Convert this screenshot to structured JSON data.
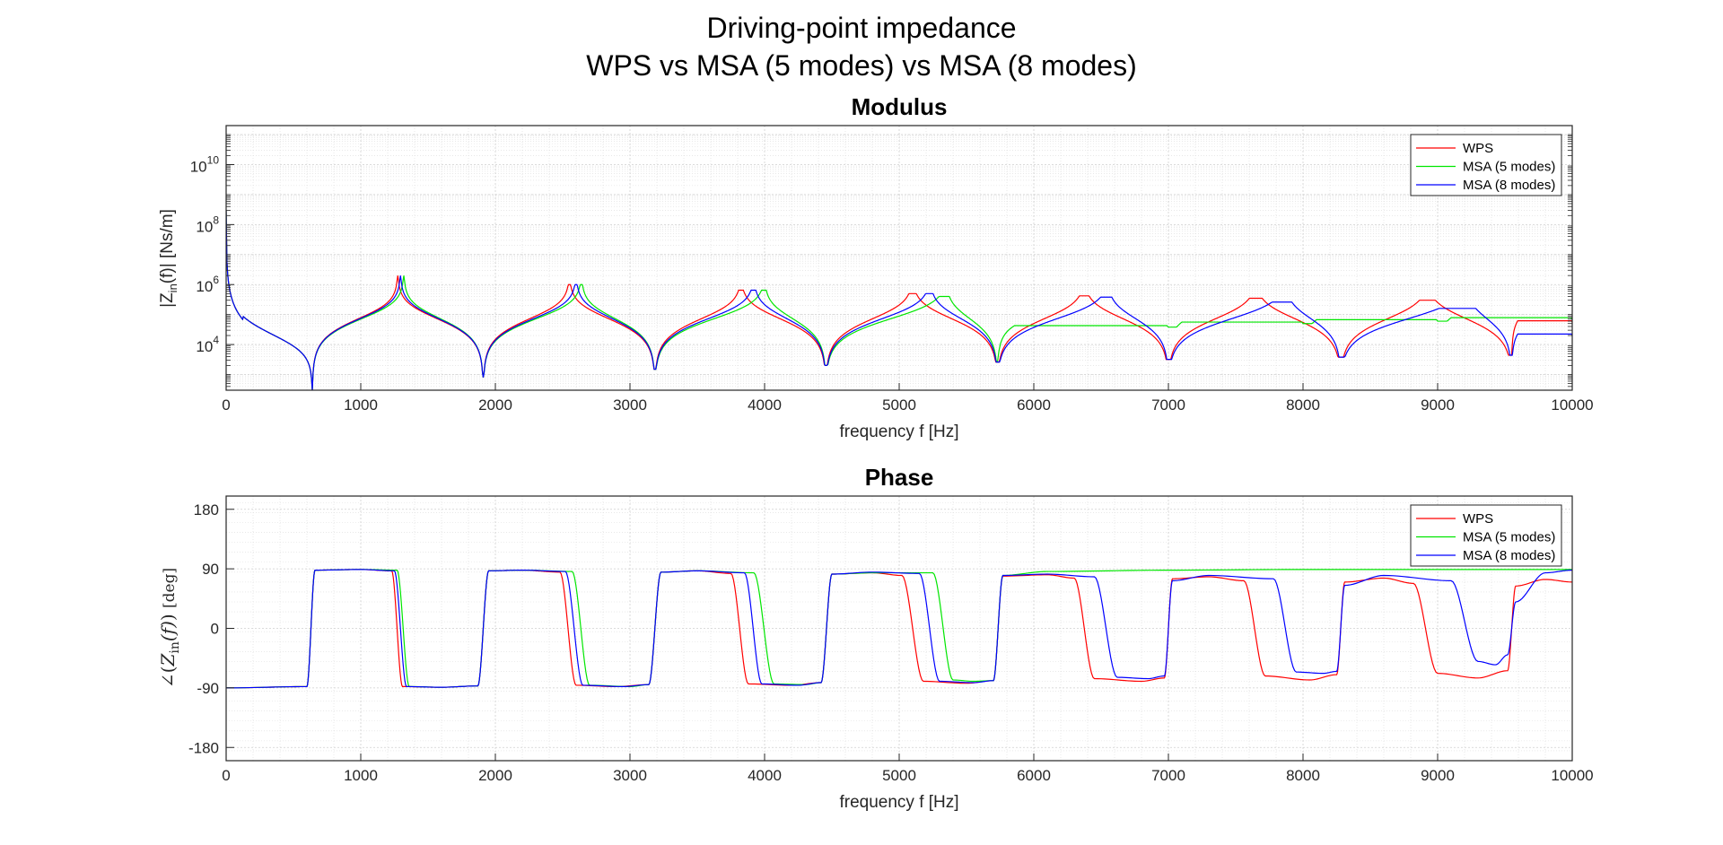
{
  "figure": {
    "title_line1": "Driving-point impedance",
    "title_line2": "WPS vs MSA (5 modes) vs MSA (8 modes)"
  },
  "colors": {
    "WPS": "#ff0000",
    "MSA (5 modes)": "#00e600",
    "MSA (8 modes)": "#0000ff"
  },
  "chart_data": [
    {
      "type": "line",
      "title": "Modulus",
      "xlabel": "frequency f [Hz]",
      "ylabel_main": "|Z",
      "ylabel_sub": "in",
      "ylabel_rest": "(f)| [Ns/m]",
      "yscale": "log",
      "xlim": [
        0,
        10000
      ],
      "ylim": [
        300,
        200000000000
      ],
      "xticks": [
        0,
        1000,
        2000,
        3000,
        4000,
        5000,
        6000,
        7000,
        8000,
        9000,
        10000
      ],
      "xticklabels": [
        "0",
        "1000",
        "2000",
        "3000",
        "4000",
        "5000",
        "6000",
        "7000",
        "8000",
        "9000",
        "10000"
      ],
      "yticks": [
        10000,
        1000000,
        100000000,
        10000000000
      ],
      "yticklabels_base": [
        "10",
        "10",
        "10",
        "10"
      ],
      "yticklabels_exp": [
        "4",
        "6",
        "8",
        "10"
      ],
      "grid": true,
      "minor_grid": true,
      "legend_position": "top-right",
      "series": [
        {
          "name": "WPS",
          "color": "#ff0000",
          "peaks": [
            [
              1275,
              2000000
            ],
            [
              2550,
              1000000
            ],
            [
              3825,
              650000
            ],
            [
              5100,
              500000
            ],
            [
              6375,
              420000
            ],
            [
              7650,
              350000
            ],
            [
              8925,
              300000
            ]
          ],
          "dips": [
            [
              0,
              300000000
            ],
            [
              640,
              300
            ],
            [
              1910,
              800
            ],
            [
              3185,
              1500
            ],
            [
              4455,
              2000
            ],
            [
              5730,
              2600
            ],
            [
              7000,
              3200
            ],
            [
              8280,
              3800
            ],
            [
              9550,
              4400
            ],
            [
              10000,
              55000
            ]
          ]
        },
        {
          "name": "MSA (5 modes)",
          "color": "#00e600",
          "peaks": [
            [
              1320,
              2000000
            ],
            [
              2640,
              1000000
            ],
            [
              4000,
              650000
            ],
            [
              5350,
              400000
            ]
          ],
          "dips": [
            [
              0,
              300000000
            ],
            [
              640,
              300
            ],
            [
              1910,
              800
            ],
            [
              3185,
              1500
            ],
            [
              4455,
              2000
            ],
            [
              5730,
              2600
            ],
            [
              7000,
              38000
            ],
            [
              8000,
              50000
            ],
            [
              9000,
              60000
            ],
            [
              10000,
              70000
            ]
          ]
        },
        {
          "name": "MSA (8 modes)",
          "color": "#0000ff",
          "peaks": [
            [
              1295,
              2000000
            ],
            [
              2600,
              1000000
            ],
            [
              3920,
              650000
            ],
            [
              5230,
              500000
            ],
            [
              6550,
              380000
            ],
            [
              7870,
              260000
            ],
            [
              9210,
              160000
            ]
          ],
          "dips": [
            [
              0,
              300000000
            ],
            [
              640,
              300
            ],
            [
              1910,
              800
            ],
            [
              3185,
              1500
            ],
            [
              4455,
              2000
            ],
            [
              5730,
              2600
            ],
            [
              7000,
              3200
            ],
            [
              8280,
              3800
            ],
            [
              9550,
              4400
            ],
            [
              10000,
              20000
            ]
          ]
        }
      ]
    },
    {
      "type": "line",
      "title": "Phase",
      "xlabel": "frequency f [Hz]",
      "ylabel": "∠(Z_in(f))  [deg]",
      "ylabel_angle": "∠",
      "ylabel_z": "Z",
      "ylabel_in": "in",
      "ylabel_f": "(f)",
      "ylabel_unit": "[deg]",
      "xlim": [
        0,
        10000
      ],
      "ylim": [
        -200,
        200
      ],
      "xticks": [
        0,
        1000,
        2000,
        3000,
        4000,
        5000,
        6000,
        7000,
        8000,
        9000,
        10000
      ],
      "xticklabels": [
        "0",
        "1000",
        "2000",
        "3000",
        "4000",
        "5000",
        "6000",
        "7000",
        "8000",
        "9000",
        "10000"
      ],
      "yticks": [
        -180,
        -90,
        0,
        90,
        180
      ],
      "yticklabels": [
        "-180",
        "-90",
        "0",
        "90",
        "180"
      ],
      "grid": true,
      "minor_grid": true,
      "legend_position": "top-right",
      "series": [
        {
          "name": "WPS",
          "color": "#ff0000",
          "points": [
            [
              0,
              -90
            ],
            [
              600,
              -88
            ],
            [
              660,
              88
            ],
            [
              1000,
              89
            ],
            [
              1230,
              87
            ],
            [
              1310,
              -88
            ],
            [
              1600,
              -89
            ],
            [
              1870,
              -87
            ],
            [
              1950,
              87
            ],
            [
              2200,
              88
            ],
            [
              2480,
              85
            ],
            [
              2600,
              -86
            ],
            [
              2900,
              -88
            ],
            [
              3140,
              -85
            ],
            [
              3230,
              85
            ],
            [
              3500,
              87
            ],
            [
              3750,
              83
            ],
            [
              3880,
              -84
            ],
            [
              4200,
              -86
            ],
            [
              4420,
              -82
            ],
            [
              4500,
              82
            ],
            [
              4800,
              84
            ],
            [
              5020,
              80
            ],
            [
              5180,
              -80
            ],
            [
              5500,
              -83
            ],
            [
              5700,
              -79
            ],
            [
              5770,
              79
            ],
            [
              6100,
              81
            ],
            [
              6300,
              76
            ],
            [
              6450,
              -76
            ],
            [
              6800,
              -80
            ],
            [
              6970,
              -75
            ],
            [
              7030,
              75
            ],
            [
              7300,
              78
            ],
            [
              7560,
              72
            ],
            [
              7720,
              -72
            ],
            [
              8050,
              -78
            ],
            [
              8250,
              -70
            ],
            [
              8310,
              70
            ],
            [
              8600,
              76
            ],
            [
              8820,
              68
            ],
            [
              9000,
              -68
            ],
            [
              9300,
              -75
            ],
            [
              9520,
              -64
            ],
            [
              9580,
              64
            ],
            [
              9800,
              74
            ],
            [
              10000,
              70
            ]
          ]
        },
        {
          "name": "MSA (5 modes)",
          "color": "#00e600",
          "points": [
            [
              0,
              -90
            ],
            [
              600,
              -88
            ],
            [
              660,
              88
            ],
            [
              1000,
              89
            ],
            [
              1270,
              88
            ],
            [
              1360,
              -88
            ],
            [
              1600,
              -89
            ],
            [
              1870,
              -87
            ],
            [
              1950,
              87
            ],
            [
              2200,
              88
            ],
            [
              2570,
              86
            ],
            [
              2700,
              -86
            ],
            [
              3000,
              -88
            ],
            [
              3140,
              -85
            ],
            [
              3230,
              85
            ],
            [
              3500,
              87
            ],
            [
              3920,
              84
            ],
            [
              4070,
              -84
            ],
            [
              4300,
              -85
            ],
            [
              4420,
              -82
            ],
            [
              4500,
              82
            ],
            [
              4800,
              84
            ],
            [
              5250,
              84
            ],
            [
              5400,
              -78
            ],
            [
              5550,
              -80
            ],
            [
              5700,
              -79
            ],
            [
              5770,
              80
            ],
            [
              6100,
              86
            ],
            [
              7000,
              88
            ],
            [
              8000,
              89
            ],
            [
              10000,
              89
            ]
          ]
        },
        {
          "name": "MSA (8 modes)",
          "color": "#0000ff",
          "points": [
            [
              0,
              -90
            ],
            [
              600,
              -88
            ],
            [
              660,
              88
            ],
            [
              1000,
              89
            ],
            [
              1250,
              87
            ],
            [
              1340,
              -88
            ],
            [
              1600,
              -89
            ],
            [
              1870,
              -87
            ],
            [
              1950,
              87
            ],
            [
              2200,
              88
            ],
            [
              2520,
              86
            ],
            [
              2650,
              -86
            ],
            [
              2950,
              -88
            ],
            [
              3140,
              -85
            ],
            [
              3230,
              85
            ],
            [
              3500,
              87
            ],
            [
              3850,
              84
            ],
            [
              3980,
              -84
            ],
            [
              4250,
              -86
            ],
            [
              4420,
              -82
            ],
            [
              4500,
              82
            ],
            [
              4800,
              85
            ],
            [
              5150,
              83
            ],
            [
              5300,
              -80
            ],
            [
              5550,
              -82
            ],
            [
              5700,
              -79
            ],
            [
              5770,
              80
            ],
            [
              6100,
              82
            ],
            [
              6450,
              78
            ],
            [
              6620,
              -74
            ],
            [
              6850,
              -76
            ],
            [
              6970,
              -72
            ],
            [
              7030,
              72
            ],
            [
              7300,
              80
            ],
            [
              7780,
              75
            ],
            [
              7950,
              -66
            ],
            [
              8150,
              -68
            ],
            [
              8250,
              -65
            ],
            [
              8310,
              65
            ],
            [
              8600,
              80
            ],
            [
              9100,
              72
            ],
            [
              9300,
              -50
            ],
            [
              9430,
              -55
            ],
            [
              9520,
              -40
            ],
            [
              9580,
              40
            ],
            [
              9800,
              84
            ],
            [
              10000,
              88
            ]
          ]
        }
      ]
    }
  ]
}
